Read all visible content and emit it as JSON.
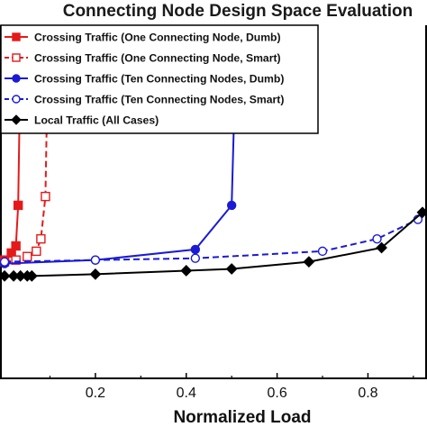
{
  "chart_data": {
    "type": "line",
    "title": "Connecting Node Design Space Evaluation",
    "xlabel": "Normalized Load",
    "ylabel": "",
    "xticks": [
      "0.2",
      "0.4",
      "0.6",
      "0.8"
    ],
    "xtick_values": [
      0.2,
      0.4,
      0.6,
      0.8
    ],
    "xlim": [
      -0.01,
      0.93
    ],
    "ylim": [
      0,
      100
    ],
    "legend_position": "top-left",
    "grid": false,
    "series": [
      {
        "name": "Crossing Traffic (One Connecting Node, Dumb)",
        "color": "#e41a1a",
        "marker": "square",
        "filled": true,
        "dash": "solid",
        "x": [
          0.0,
          0.015,
          0.025,
          0.03,
          0.035
        ],
        "y": [
          33.5,
          35.5,
          37.5,
          49.0,
          90.0
        ]
      },
      {
        "name": "Crossing Traffic (One Connecting Node, Smart)",
        "color": "#e41a1a",
        "marker": "square",
        "filled": false,
        "dash": "dashed",
        "x": [
          0.0,
          0.025,
          0.05,
          0.07,
          0.08,
          0.09,
          0.095
        ],
        "y": [
          33.0,
          33.5,
          34.5,
          36.0,
          39.5,
          51.5,
          88.0
        ]
      },
      {
        "name": "Crossing Traffic (Ten Connecting Nodes, Dumb)",
        "color": "#1a1ad6",
        "marker": "circle",
        "filled": true,
        "dash": "solid",
        "x": [
          0.0,
          0.2,
          0.42,
          0.5,
          0.505,
          0.51
        ],
        "y": [
          32.5,
          33.5,
          36.5,
          49.0,
          72.5,
          76.0
        ]
      },
      {
        "name": "Crossing Traffic (Ten Connecting Nodes, Smart)",
        "color": "#1a1ad6",
        "marker": "circle",
        "filled": false,
        "dash": "dashed",
        "x": [
          0.0,
          0.2,
          0.42,
          0.7,
          0.82,
          0.91
        ],
        "y": [
          33.0,
          33.5,
          34.0,
          36.0,
          39.5,
          45.0
        ]
      },
      {
        "name": "Local Traffic (All Cases)",
        "color": "#000000",
        "marker": "diamond",
        "filled": true,
        "dash": "solid",
        "x": [
          0.0,
          0.02,
          0.035,
          0.05,
          0.06,
          0.2,
          0.4,
          0.5,
          0.67,
          0.83,
          0.92
        ],
        "y": [
          29.0,
          29.0,
          29.0,
          29.0,
          29.0,
          29.5,
          30.5,
          31.0,
          33.0,
          37.0,
          47.0
        ]
      }
    ]
  }
}
